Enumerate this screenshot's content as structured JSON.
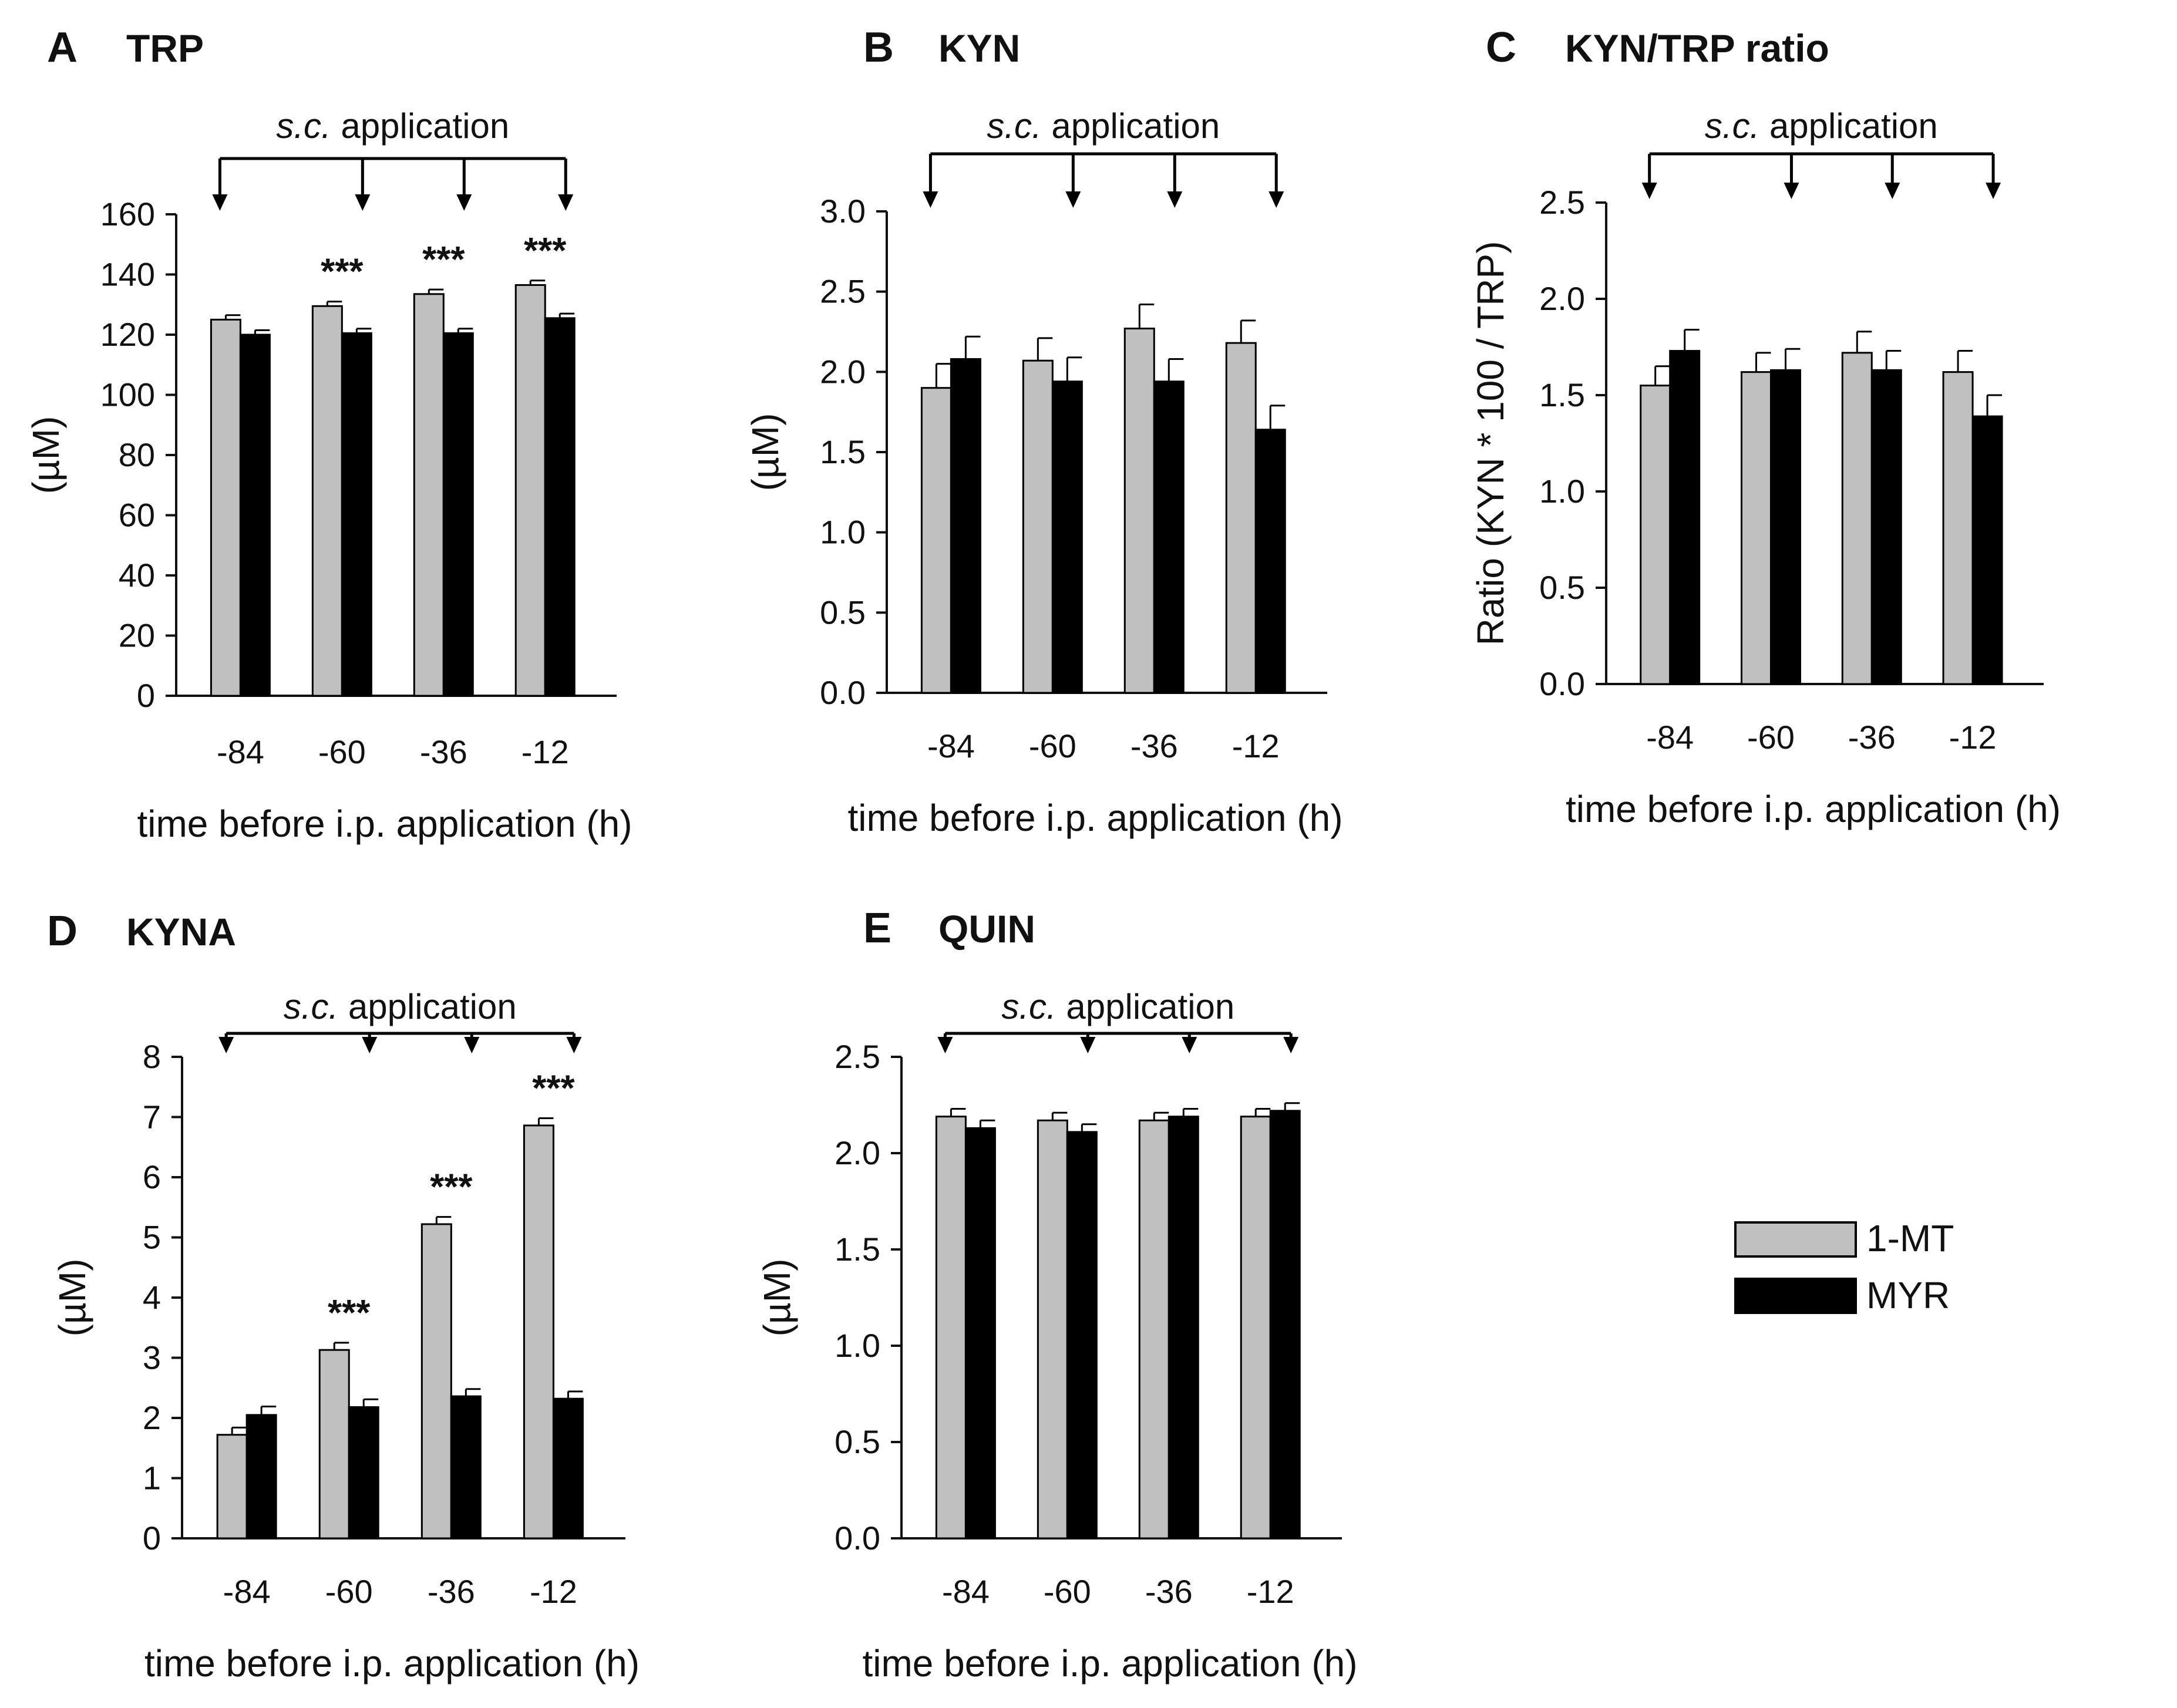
{
  "chart_data": [
    {
      "type": "bar",
      "panel": "A",
      "title": "TRP",
      "categories": [
        "-84",
        "-60",
        "-36",
        "-12"
      ],
      "series": [
        {
          "name": "1-MT",
          "values": [
            125,
            129.5,
            133.5,
            136.5
          ],
          "errors": [
            1.5,
            1.5,
            1.5,
            1.5
          ]
        },
        {
          "name": "MYR",
          "values": [
            120,
            120.5,
            120.5,
            125.5
          ],
          "errors": [
            1.5,
            1.5,
            1.5,
            1.5
          ]
        }
      ],
      "significance": [
        "",
        "***",
        "***",
        "***"
      ],
      "ylim": [
        0,
        160
      ],
      "yticks": [
        "0",
        "20",
        "40",
        "60",
        "80",
        "100",
        "120",
        "140",
        "160"
      ],
      "ylabel": "(µM)",
      "xlabel": "time before i.p. application (h)",
      "annotation": {
        "prefix": "s.c.",
        "text": " application"
      }
    },
    {
      "type": "bar",
      "panel": "B",
      "title": "KYN",
      "categories": [
        "-84",
        "-60",
        "-36",
        "-12"
      ],
      "series": [
        {
          "name": "1-MT",
          "values": [
            1.9,
            2.07,
            2.27,
            2.18
          ],
          "errors": [
            0.15,
            0.14,
            0.15,
            0.14
          ]
        },
        {
          "name": "MYR",
          "values": [
            2.08,
            1.94,
            1.94,
            1.64
          ],
          "errors": [
            0.14,
            0.15,
            0.14,
            0.15
          ]
        }
      ],
      "significance": [
        "",
        "",
        "",
        ""
      ],
      "ylim": [
        0,
        3
      ],
      "yticks": [
        "0.0",
        "0.5",
        "1.0",
        "1.5",
        "2.0",
        "2.5",
        "3.0"
      ],
      "ylabel": "(µM)",
      "xlabel": "time before i.p. application (h)",
      "annotation": {
        "prefix": "s.c.",
        "text": " application"
      }
    },
    {
      "type": "bar",
      "panel": "C",
      "title": "KYN/TRP ratio",
      "categories": [
        "-84",
        "-60",
        "-36",
        "-12"
      ],
      "series": [
        {
          "name": "1-MT",
          "values": [
            1.55,
            1.62,
            1.72,
            1.62
          ],
          "errors": [
            0.1,
            0.1,
            0.11,
            0.11
          ]
        },
        {
          "name": "MYR",
          "values": [
            1.73,
            1.63,
            1.63,
            1.39
          ],
          "errors": [
            0.11,
            0.11,
            0.1,
            0.11
          ]
        }
      ],
      "significance": [
        "",
        "",
        "",
        ""
      ],
      "ylim": [
        0,
        2.5
      ],
      "yticks": [
        "0.0",
        "0.5",
        "1.0",
        "1.5",
        "2.0",
        "2.5"
      ],
      "ylabel": "Ratio (KYN * 100 / TRP)",
      "xlabel": "time before i.p. application (h)",
      "annotation": {
        "prefix": "s.c.",
        "text": " application"
      }
    },
    {
      "type": "bar",
      "panel": "D",
      "title": "KYNA",
      "categories": [
        "-84",
        "-60",
        "-36",
        "-12"
      ],
      "series": [
        {
          "name": "1-MT",
          "values": [
            1.72,
            3.13,
            5.22,
            6.86
          ],
          "errors": [
            0.12,
            0.12,
            0.12,
            0.12
          ]
        },
        {
          "name": "MYR",
          "values": [
            2.05,
            2.18,
            2.36,
            2.32
          ],
          "errors": [
            0.14,
            0.13,
            0.12,
            0.12
          ]
        }
      ],
      "significance": [
        "",
        "***",
        "***",
        "***"
      ],
      "ylim": [
        0,
        8
      ],
      "yticks": [
        "0",
        "1",
        "2",
        "3",
        "4",
        "5",
        "6",
        "7",
        "8"
      ],
      "ylabel": "(µM)",
      "xlabel": "time before i.p. application (h)",
      "annotation": {
        "prefix": "s.c.",
        "text": " application"
      }
    },
    {
      "type": "bar",
      "panel": "E",
      "title": "QUIN",
      "categories": [
        "-84",
        "-60",
        "-36",
        "-12"
      ],
      "series": [
        {
          "name": "1-MT",
          "values": [
            2.19,
            2.17,
            2.17,
            2.19
          ],
          "errors": [
            0.04,
            0.04,
            0.04,
            0.04
          ]
        },
        {
          "name": "MYR",
          "values": [
            2.13,
            2.11,
            2.19,
            2.22
          ],
          "errors": [
            0.04,
            0.04,
            0.04,
            0.04
          ]
        }
      ],
      "significance": [
        "",
        "",
        "",
        ""
      ],
      "ylim": [
        0,
        2.5
      ],
      "yticks": [
        "0.0",
        "0.5",
        "1.0",
        "1.5",
        "2.0",
        "2.5"
      ],
      "ylabel": "(µM)",
      "xlabel": "time before i.p. application (h)",
      "annotation": {
        "prefix": "s.c.",
        "text": " application"
      }
    }
  ],
  "legend": {
    "position": "right",
    "items": [
      {
        "name": "1-MT",
        "color": "#c0c0c0"
      },
      {
        "name": "MYR",
        "color": "#000000"
      }
    ]
  },
  "colors": {
    "series_1": "#c0c0c0",
    "series_2": "#000000",
    "axis": "#111111"
  }
}
